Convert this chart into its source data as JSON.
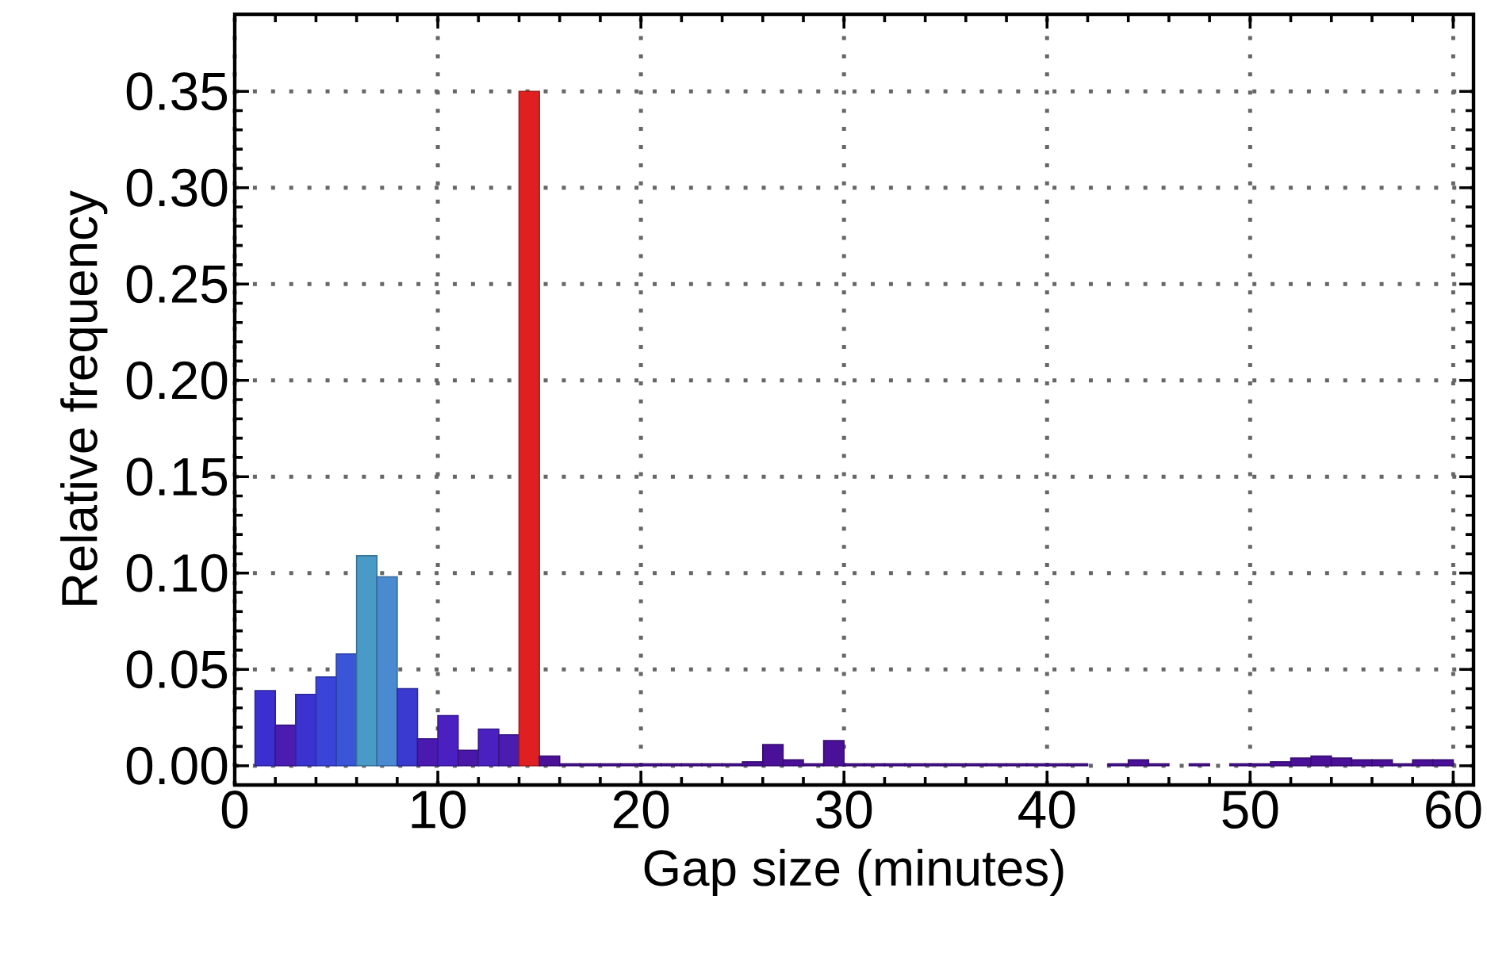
{
  "chart_data": {
    "type": "histogram",
    "xlabel": "Gap size (minutes)",
    "ylabel": "Relative frequency",
    "bins": [
      1,
      2,
      3,
      4,
      5,
      6,
      7,
      8,
      9,
      10,
      11,
      12,
      13,
      14,
      15,
      16,
      17,
      18,
      19,
      20,
      21,
      22,
      23,
      24,
      25,
      26,
      27,
      28,
      29,
      30,
      31,
      32,
      33,
      34,
      35,
      36,
      37,
      38,
      39,
      40,
      41,
      42,
      43,
      44,
      45,
      46,
      47,
      48,
      49,
      50,
      51,
      52,
      53,
      54,
      55,
      56,
      57,
      58,
      59,
      60
    ],
    "values": [
      0.039,
      0.021,
      0.037,
      0.046,
      0.058,
      0.109,
      0.098,
      0.04,
      0.014,
      0.026,
      0.008,
      0.019,
      0.016,
      0.35,
      0.005,
      0.001,
      0.001,
      0.001,
      0.001,
      0.001,
      0.001,
      0.001,
      0.001,
      0.001,
      0.002,
      0.011,
      0.003,
      0.001,
      0.013,
      0.001,
      0.001,
      0.001,
      0.001,
      0.001,
      0.001,
      0.001,
      0.001,
      0.001,
      0.001,
      0.001,
      0.001,
      0.0,
      0.001,
      0.003,
      0.001,
      0.0,
      0.001,
      0.0,
      0.001,
      0.001,
      0.002,
      0.004,
      0.005,
      0.004,
      0.003,
      0.003,
      0.001,
      0.003,
      0.003
    ],
    "colors": [
      "#3b2fd0",
      "#4a1cb0",
      "#3a33d0",
      "#3a44d8",
      "#3a55d8",
      "#4a9ac8",
      "#4a8ad0",
      "#3a3ad0",
      "#4a1ab0",
      "#4a20c0",
      "#4a18a8",
      "#4a20c0",
      "#4a1cb0",
      "#e02020",
      "#4a1098",
      "#4a1098",
      "#4a1098",
      "#4a1098",
      "#4a1098",
      "#4a1098",
      "#4a1098",
      "#4a1098",
      "#4a1098",
      "#4a1098",
      "#4a1098",
      "#4a1098",
      "#4a1098",
      "#4a1098",
      "#4a1098",
      "#4a1098",
      "#4a1098",
      "#4a1098",
      "#4a1098",
      "#4a1098",
      "#4a1098",
      "#4a1098",
      "#4a1098",
      "#4a1098",
      "#4a1098",
      "#4a1098",
      "#4a1098",
      "#4a1098",
      "#4a1098",
      "#4a1098",
      "#4a1098",
      "#4a1098",
      "#4a1098",
      "#4a1098",
      "#4a1098",
      "#4a1098",
      "#4a1098",
      "#4a1098",
      "#4a1098",
      "#4a1098",
      "#4a1098",
      "#4a1098",
      "#4a1098",
      "#4a1098",
      "#4a1098"
    ],
    "xlim": [
      0,
      61
    ],
    "ylim": [
      -0.01,
      0.39
    ],
    "xticks": [
      0,
      10,
      20,
      30,
      40,
      50,
      60
    ],
    "yticks": [
      {
        "value": 0,
        "label": "0.00"
      },
      {
        "value": 0.05,
        "label": "0.05"
      },
      {
        "value": 0.1,
        "label": "0.10"
      },
      {
        "value": 0.15,
        "label": "0.15"
      },
      {
        "value": 0.2,
        "label": "0.20"
      },
      {
        "value": 0.25,
        "label": "0.25"
      },
      {
        "value": 0.3,
        "label": "0.30"
      },
      {
        "value": 0.35,
        "label": "0.35"
      }
    ],
    "grid": true
  }
}
